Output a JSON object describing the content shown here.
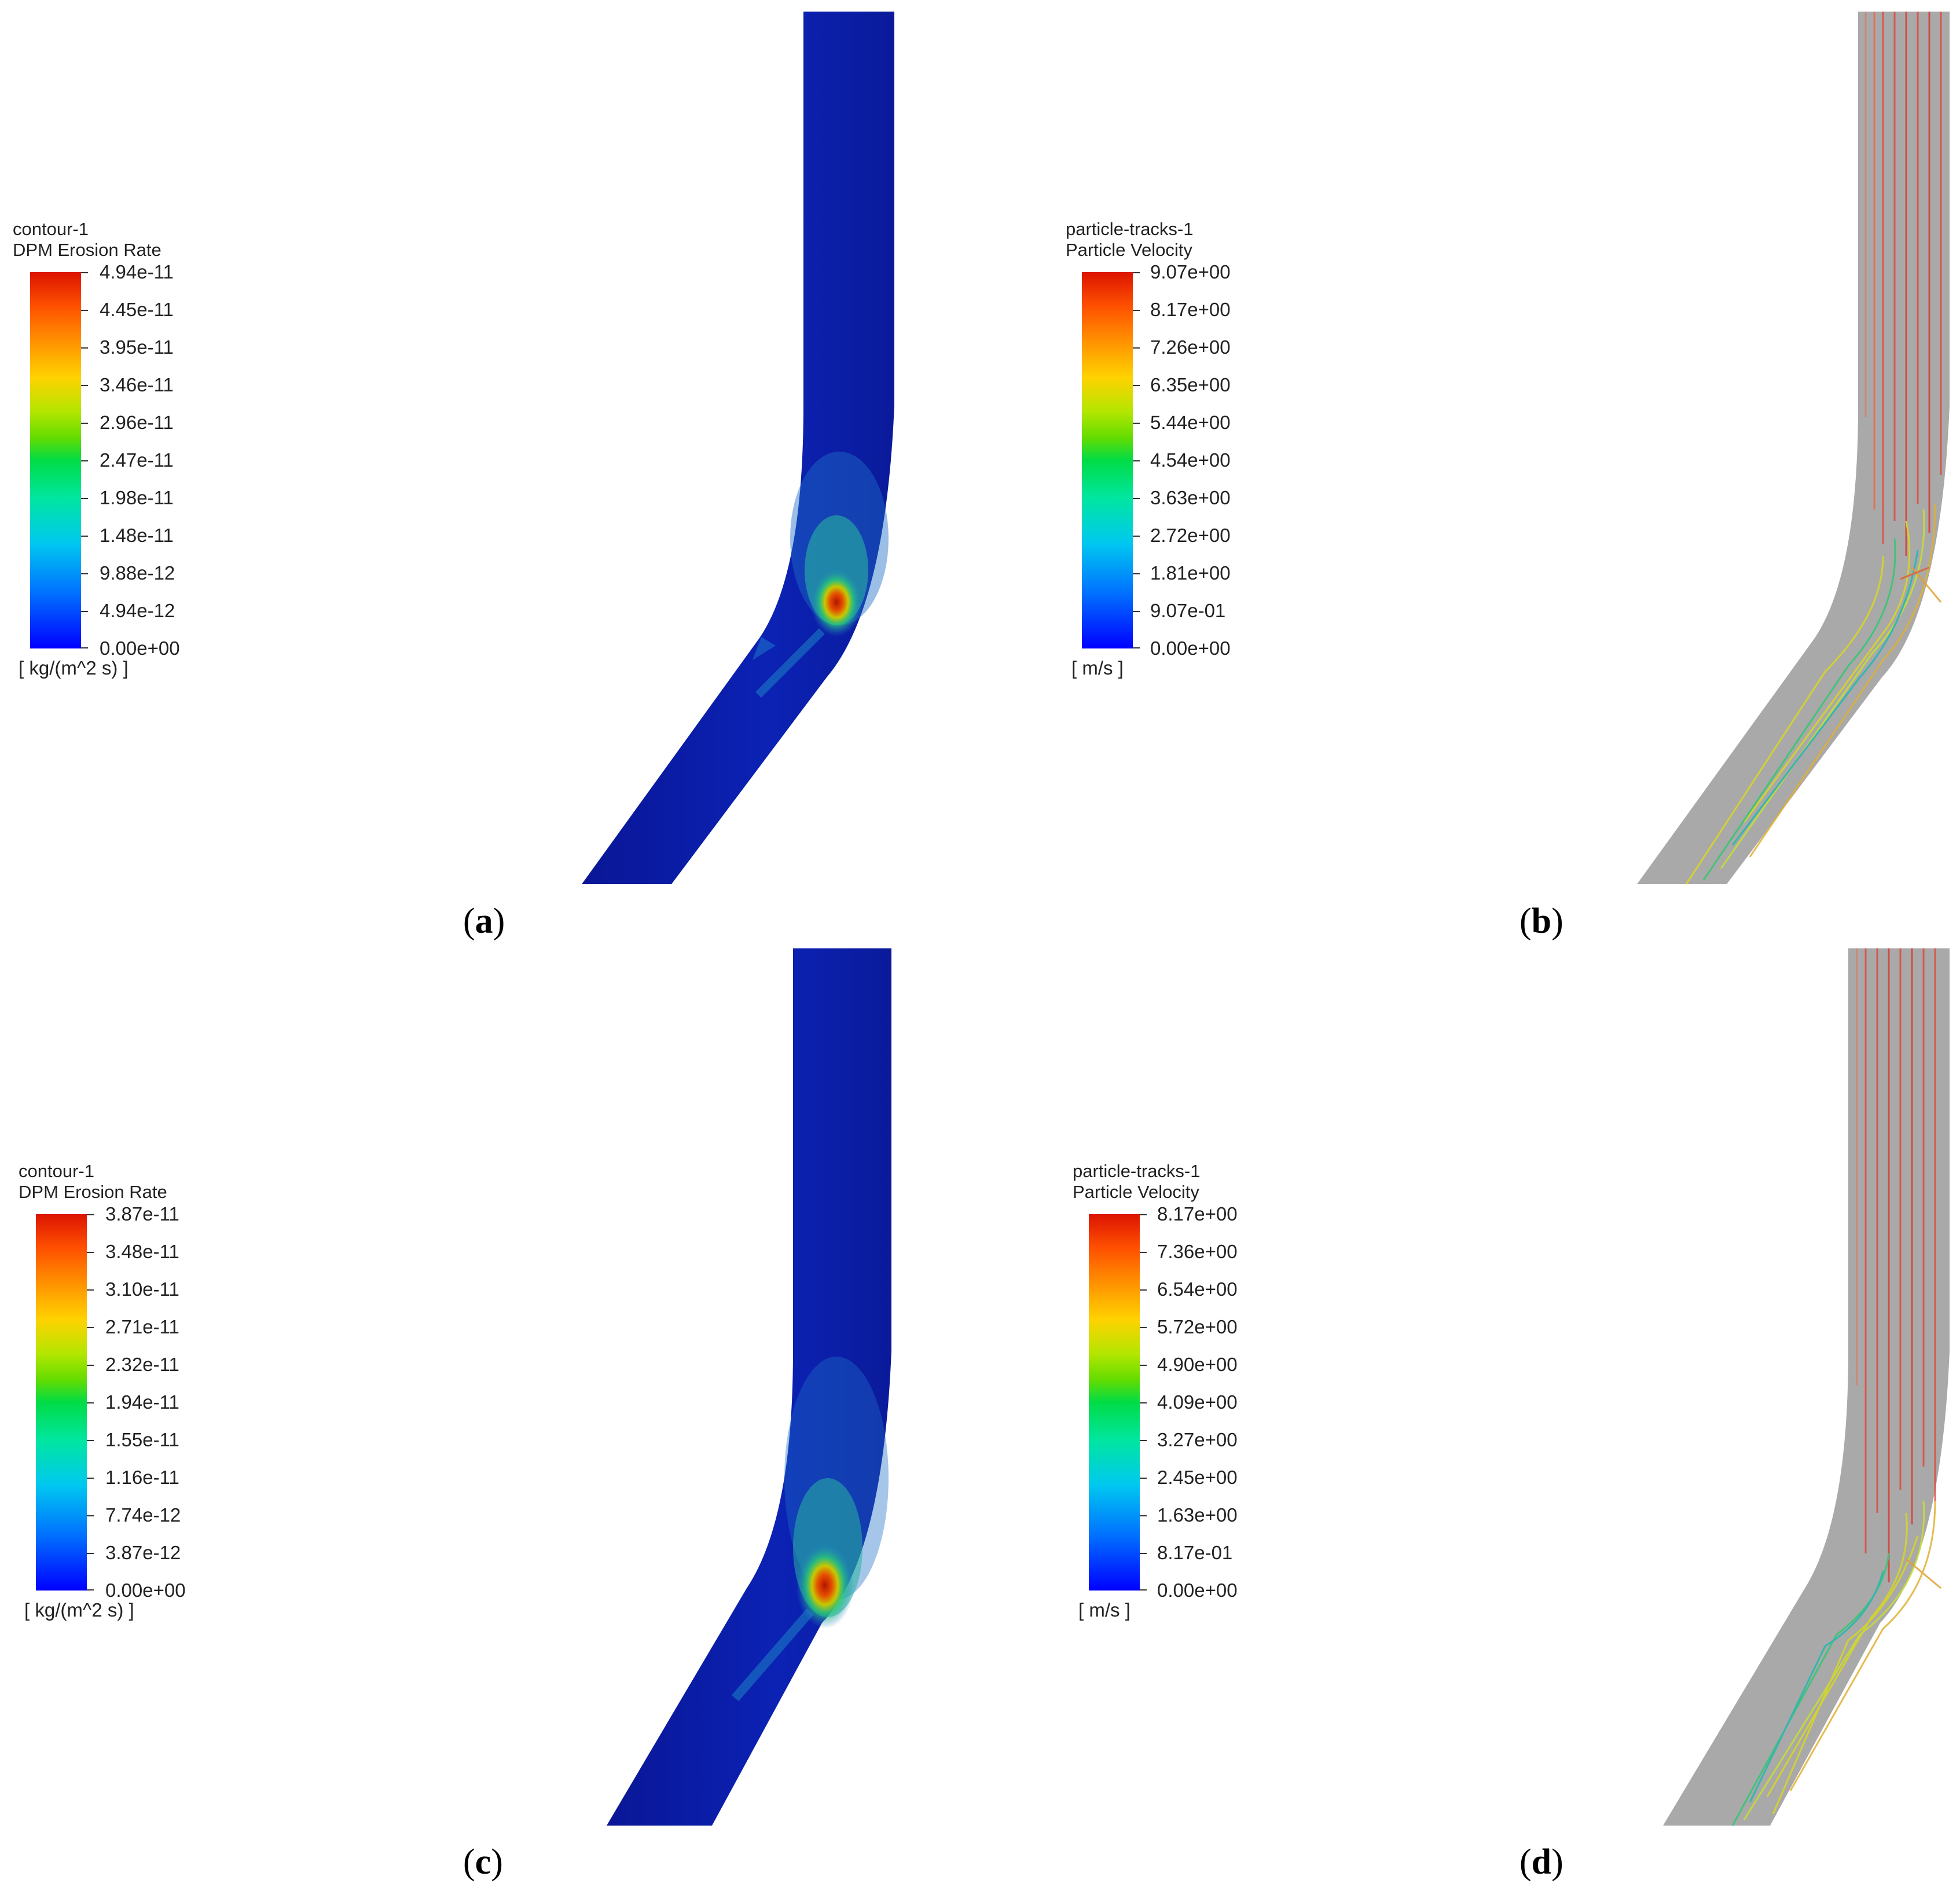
{
  "panels": {
    "a": {
      "legend": {
        "name": "contour-1",
        "variable": "DPM Erosion Rate",
        "values": [
          "4.94e-11",
          "4.45e-11",
          "3.95e-11",
          "3.46e-11",
          "2.96e-11",
          "2.47e-11",
          "1.98e-11",
          "1.48e-11",
          "9.88e-12",
          "4.94e-12",
          "0.00e+00"
        ],
        "unit": "[ kg/(m^2 s) ]"
      },
      "caption_letter": "a"
    },
    "b": {
      "legend": {
        "name": "particle-tracks-1",
        "variable": "Particle Velocity",
        "values": [
          "9.07e+00",
          "8.17e+00",
          "7.26e+00",
          "6.35e+00",
          "5.44e+00",
          "4.54e+00",
          "3.63e+00",
          "2.72e+00",
          "1.81e+00",
          "9.07e-01",
          "0.00e+00"
        ],
        "unit": "[ m/s ]"
      },
      "caption_letter": "b"
    },
    "c": {
      "legend": {
        "name": "contour-1",
        "variable": "DPM Erosion Rate",
        "values": [
          "3.87e-11",
          "3.48e-11",
          "3.10e-11",
          "2.71e-11",
          "2.32e-11",
          "1.94e-11",
          "1.55e-11",
          "1.16e-11",
          "7.74e-12",
          "3.87e-12",
          "0.00e+00"
        ],
        "unit": "[ kg/(m^2 s) ]"
      },
      "caption_letter": "c"
    },
    "d": {
      "legend": {
        "name": "particle-tracks-1",
        "variable": "Particle Velocity",
        "values": [
          "8.17e+00",
          "7.36e+00",
          "6.54e+00",
          "5.72e+00",
          "4.90e+00",
          "4.09e+00",
          "3.27e+00",
          "2.45e+00",
          "1.63e+00",
          "8.17e-01",
          "0.00e+00"
        ],
        "unit": "[ m/s ]"
      },
      "caption_letter": "d"
    }
  },
  "colors": {
    "pipe_blue": "#0a1ea0",
    "pipe_gray": "#a8a8a8",
    "hotspot_red": "#c81e00",
    "track_red": "#e04a3a",
    "track_yellow": "#d8d820",
    "track_green": "#30c870"
  }
}
